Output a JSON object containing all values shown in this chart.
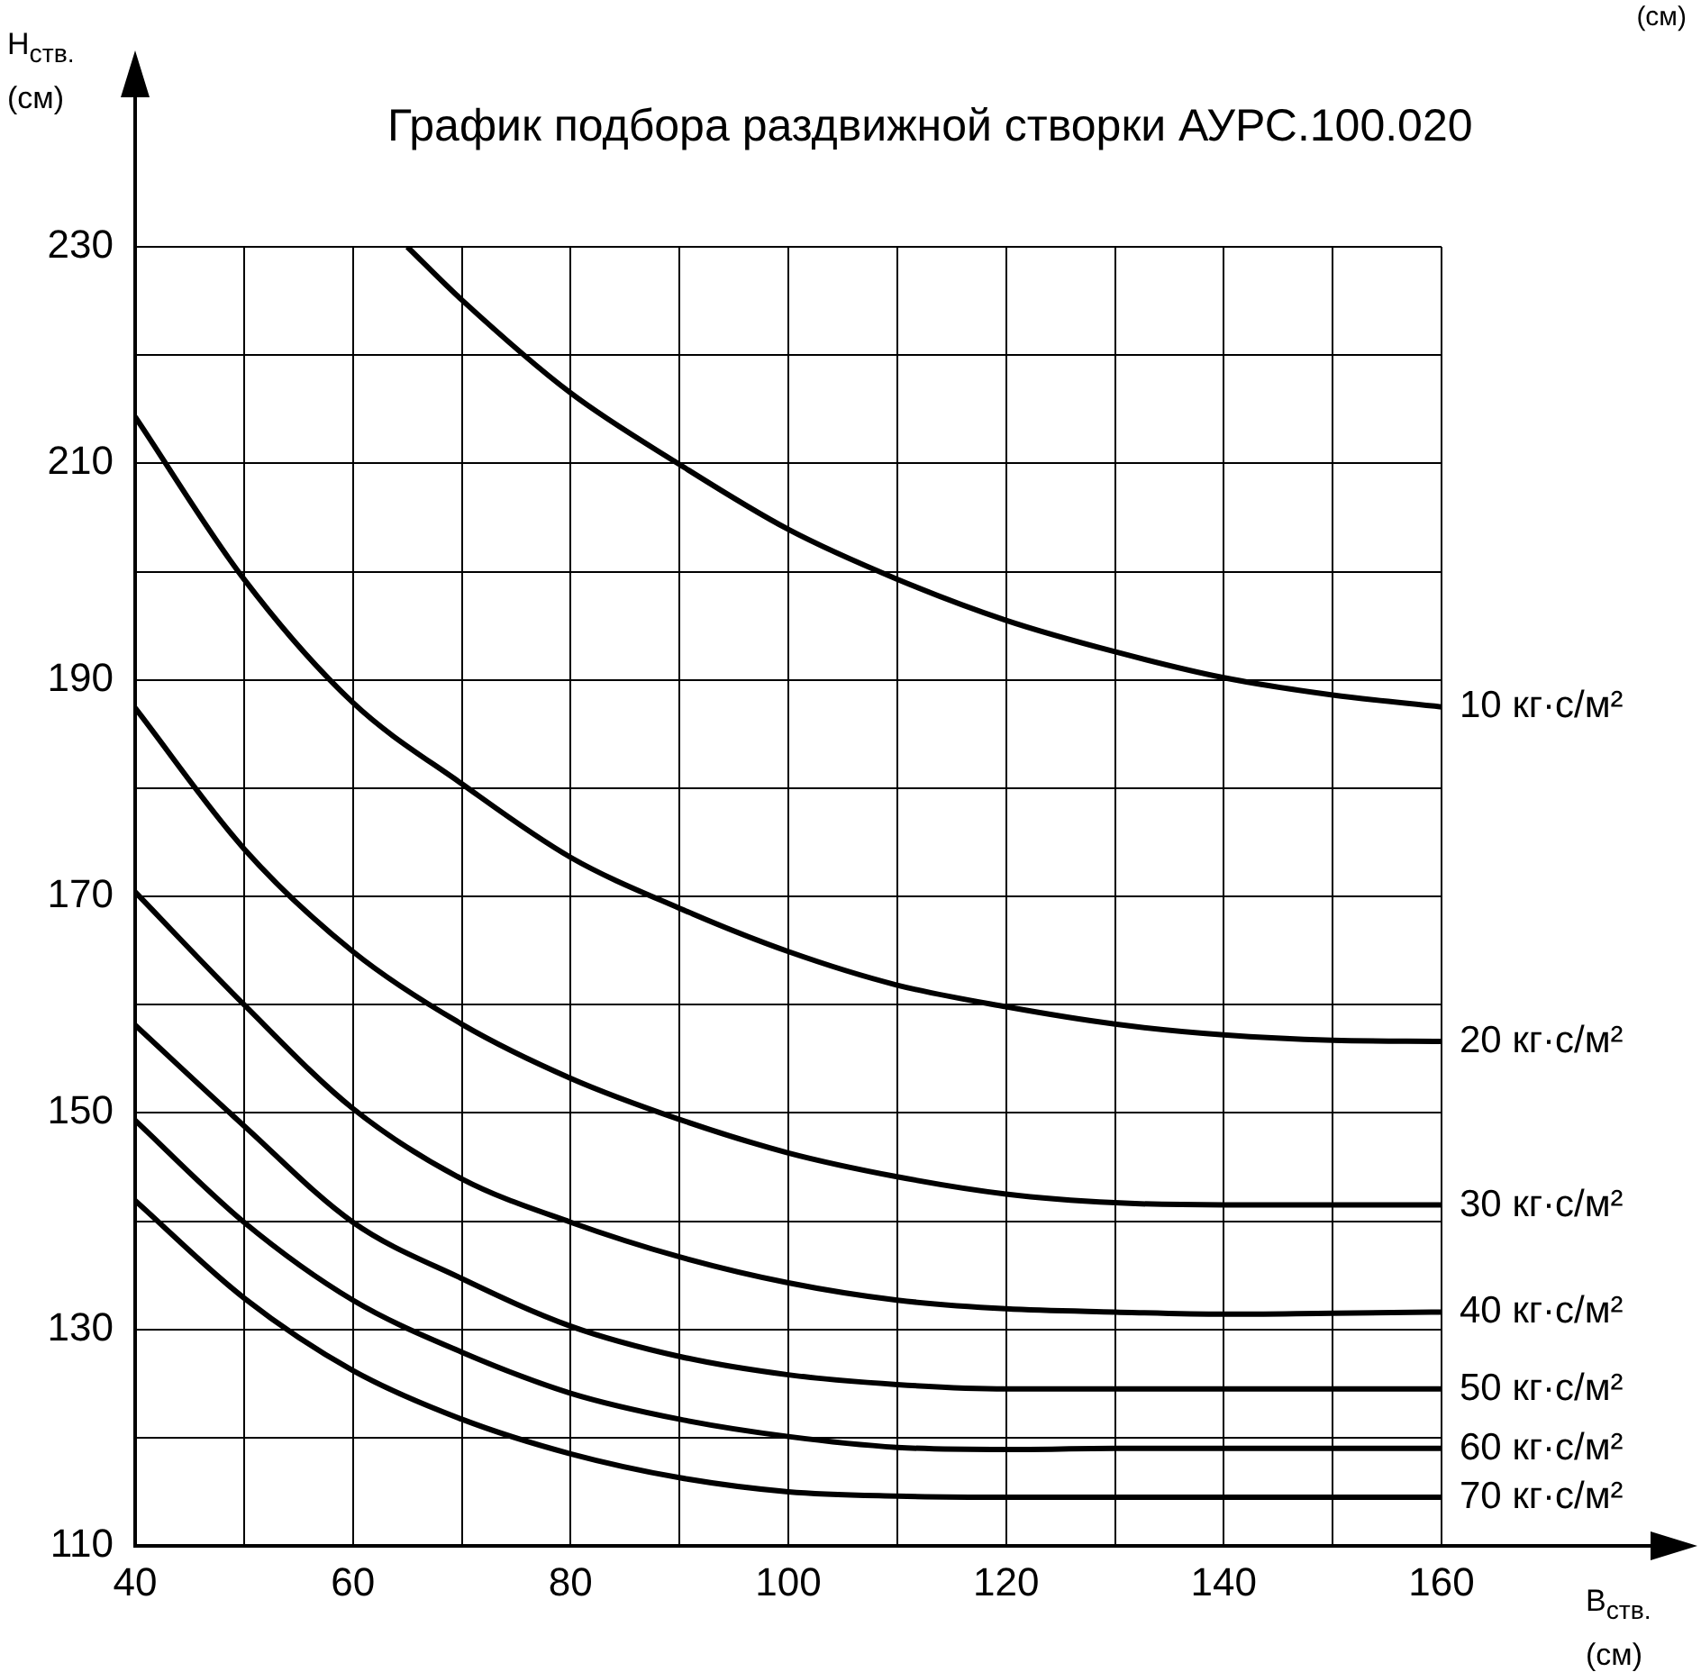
{
  "chart_data": {
    "type": "line",
    "title": "График подбора раздвижной створки АУРС.100.020",
    "xlabel": "B$_{ств.}$ (см)",
    "ylabel": "H$_{ств.}$ (см)",
    "annotations": [
      "(см)"
    ],
    "x": [
      40,
      50,
      60,
      70,
      80,
      90,
      100,
      110,
      120,
      130,
      140,
      150,
      160
    ],
    "series": [
      {
        "name": "10 кг·с/м²",
        "color": "#000000",
        "x": [
          65,
          70,
          80,
          90,
          100,
          110,
          120,
          130,
          140,
          150,
          160
        ],
        "values": [
          230,
          225.1,
          216.5,
          209.9,
          203.9,
          199.3,
          195.5,
          192.6,
          190.2,
          188.6,
          187.5
        ]
      },
      {
        "name": "20 кг·с/м²",
        "color": "#000000",
        "values": [
          214.3,
          199.3,
          187.9,
          180.4,
          173.6,
          168.9,
          164.9,
          161.8,
          159.8,
          158.2,
          157.2,
          156.7,
          156.6
        ]
      },
      {
        "name": "30 кг·с/м²",
        "color": "#000000",
        "values": [
          187.4,
          174.4,
          164.9,
          158.2,
          153.2,
          149.4,
          146.3,
          144.1,
          142.5,
          141.7,
          141.5,
          141.5,
          141.5
        ]
      },
      {
        "name": "40 кг·с/м²",
        "color": "#000000",
        "values": [
          170.4,
          160,
          150.4,
          143.9,
          139.9,
          136.7,
          134.3,
          132.7,
          131.9,
          131.6,
          131.4,
          131.5,
          131.6
        ]
      },
      {
        "name": "50 кг·с/м²",
        "color": "#000000",
        "values": [
          158.1,
          148.8,
          139.9,
          134.7,
          130.3,
          127.5,
          125.8,
          124.9,
          124.5,
          124.5,
          124.5,
          124.5,
          124.5
        ]
      },
      {
        "name": "60 кг·с/м²",
        "color": "#000000",
        "values": [
          149.3,
          139.9,
          132.7,
          127.9,
          124.1,
          121.7,
          120.1,
          119.1,
          118.9,
          119,
          119,
          119,
          119
        ]
      },
      {
        "name": "70 кг·с/м²",
        "color": "#000000",
        "values": [
          141.9,
          132.9,
          126.2,
          121.7,
          118.5,
          116.3,
          115,
          114.6,
          114.5,
          114.5,
          114.5,
          114.5,
          114.5
        ]
      }
    ],
    "xlim": [
      40,
      160
    ],
    "xticks": [
      40,
      {
        "value": 50,
        "label": null
      },
      60,
      {
        "value": 70,
        "label": null
      },
      80,
      {
        "value": 90,
        "label": null
      },
      100,
      {
        "value": 110,
        "label": null
      },
      120,
      {
        "value": 130,
        "label": null
      },
      140,
      {
        "value": 150,
        "label": null
      },
      160
    ],
    "ylim": [
      110,
      230
    ],
    "yticks": [
      110,
      {
        "value": 120,
        "label": null
      },
      130,
      {
        "value": 140,
        "label": null
      },
      150,
      {
        "value": 160,
        "label": null
      },
      170,
      {
        "value": 180,
        "label": null
      },
      190,
      {
        "value": 200,
        "label": null
      },
      210,
      {
        "value": 220,
        "label": null
      },
      230
    ],
    "grid": true,
    "legend": false,
    "marker": "none",
    "line_style": "solid"
  }
}
